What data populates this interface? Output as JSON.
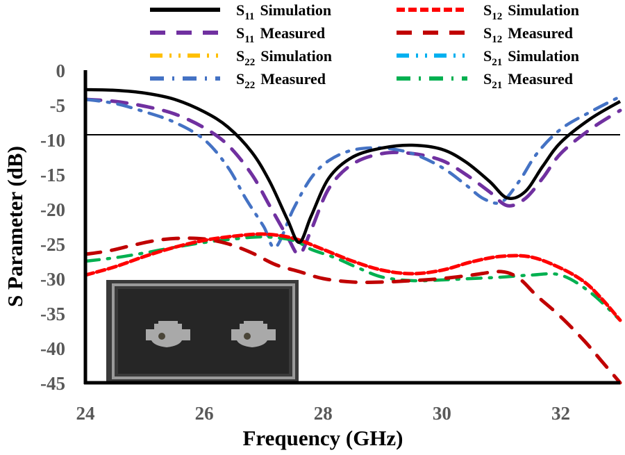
{
  "chart_data": {
    "type": "line",
    "title": "",
    "xlabel": "Frequency (GHz)",
    "ylabel": "S Parameter (dB)",
    "xlim": [
      24,
      33
    ],
    "ylim": [
      -45,
      0
    ],
    "xticks": [
      24,
      26,
      28,
      30,
      32
    ],
    "yticks": [
      0,
      -5,
      -10,
      -15,
      -20,
      -25,
      -30,
      -35,
      -40,
      -45
    ],
    "grid": false,
    "reference_line": {
      "y": -9.3,
      "label": ""
    },
    "legend": {
      "placement": "top",
      "columns": 2
    },
    "inset": {
      "description": "photo of fabricated two-port antenna prototype",
      "placement": "bottom-left"
    },
    "series": [
      {
        "name": "S11 Simulation",
        "base": "S",
        "sub": "11",
        "suffix": "Simulation",
        "color": "#000000",
        "dash": "solid",
        "x": [
          24,
          24.5,
          25,
          25.5,
          26,
          26.4,
          26.8,
          27.1,
          27.4,
          27.6,
          27.8,
          28.1,
          28.5,
          29,
          29.5,
          30,
          30.4,
          30.8,
          31.1,
          31.4,
          31.7,
          32,
          32.5,
          33
        ],
        "y": [
          -2.8,
          -2.9,
          -3.3,
          -4.2,
          -6.0,
          -8.2,
          -11.8,
          -16.0,
          -21.5,
          -24.8,
          -21.0,
          -15.5,
          -12.5,
          -11.2,
          -10.8,
          -11.4,
          -13.2,
          -16.0,
          -18.4,
          -17.5,
          -13.8,
          -10.4,
          -7.0,
          -4.5
        ]
      },
      {
        "name": "S11 Measured",
        "base": "S",
        "sub": "11",
        "suffix": "Measured",
        "color": "#7030a0",
        "dash": "longdash",
        "x": [
          24,
          24.5,
          25,
          25.5,
          26,
          26.4,
          26.8,
          27.1,
          27.4,
          27.6,
          27.8,
          28.1,
          28.5,
          29,
          29.5,
          30,
          30.4,
          30.8,
          31.1,
          31.4,
          31.7,
          32,
          32.5,
          33
        ],
        "y": [
          -4.2,
          -4.5,
          -5.2,
          -6.3,
          -8.3,
          -10.8,
          -15.0,
          -19.5,
          -24.0,
          -26.5,
          -23.0,
          -17.0,
          -13.5,
          -12.0,
          -12.0,
          -13.0,
          -15.0,
          -17.5,
          -19.5,
          -18.5,
          -15.5,
          -12.0,
          -8.5,
          -5.8
        ]
      },
      {
        "name": "S22 Simulation",
        "base": "S",
        "sub": "22",
        "suffix": "Simulation",
        "color": "#ffc000",
        "dash": "dashdotdot",
        "x": [],
        "y": []
      },
      {
        "name": "S22 Measured",
        "base": "S",
        "sub": "22",
        "suffix": "Measured",
        "color": "#4472c4",
        "dash": "dashdot",
        "x": [
          24,
          24.5,
          25,
          25.5,
          26,
          26.4,
          26.7,
          27.0,
          27.2,
          27.5,
          27.8,
          28.1,
          28.5,
          29,
          29.5,
          30,
          30.4,
          30.7,
          31.0,
          31.3,
          31.6,
          32,
          32.5,
          33
        ],
        "y": [
          -4.2,
          -4.8,
          -6.0,
          -7.5,
          -10.0,
          -14.0,
          -18.5,
          -22.5,
          -25.5,
          -20.0,
          -15.5,
          -13.0,
          -11.5,
          -11.2,
          -12.0,
          -14.0,
          -16.5,
          -18.5,
          -19.0,
          -16.0,
          -12.0,
          -8.5,
          -6.0,
          -3.8
        ]
      },
      {
        "name": "S12 Simulation",
        "base": "S",
        "sub": "12",
        "suffix": "Simulation",
        "color": "#ff0000",
        "dash": "shortdash",
        "x": [
          24,
          24.5,
          25,
          25.5,
          26,
          26.5,
          27,
          27.5,
          28,
          28.5,
          29,
          29.5,
          30,
          30.5,
          31,
          31.5,
          32,
          32.4,
          32.7,
          33
        ],
        "y": [
          -29.5,
          -28.3,
          -26.8,
          -25.5,
          -24.5,
          -23.9,
          -23.6,
          -24.2,
          -25.8,
          -27.5,
          -28.8,
          -29.3,
          -28.8,
          -27.6,
          -26.8,
          -26.9,
          -28.5,
          -30.5,
          -33.0,
          -36.0
        ]
      },
      {
        "name": "S12 Measured",
        "base": "S",
        "sub": "12",
        "suffix": "Measured",
        "color": "#c00000",
        "dash": "longdash",
        "x": [
          24,
          24.4,
          24.8,
          25.2,
          25.6,
          26.0,
          26.4,
          26.8,
          27.2,
          27.6,
          28.0,
          28.5,
          29,
          29.5,
          30,
          30.5,
          31,
          31.3,
          31.6,
          32.0,
          32.4,
          32.7,
          33
        ],
        "y": [
          -26.5,
          -26.0,
          -25.2,
          -24.5,
          -24.2,
          -24.3,
          -25.0,
          -26.3,
          -28.0,
          -29.0,
          -30.0,
          -30.5,
          -30.5,
          -30.3,
          -30.0,
          -29.5,
          -29.0,
          -30.0,
          -32.5,
          -35.5,
          -39.0,
          -42.0,
          -45.0
        ]
      },
      {
        "name": "S21 Simulation",
        "base": "S",
        "sub": "21",
        "suffix": "Simulation",
        "color": "#00b0f0",
        "dash": "dashdotdot",
        "x": [
          24,
          24.5,
          25,
          25.5,
          26,
          26.5,
          27,
          27.5,
          28,
          28.5,
          29,
          29.5,
          30,
          30.5,
          31,
          31.5,
          32,
          32.4,
          32.7,
          33
        ],
        "y": [
          -29.5,
          -28.3,
          -26.8,
          -25.5,
          -24.5,
          -23.9,
          -23.6,
          -24.2,
          -25.8,
          -27.5,
          -28.8,
          -29.3,
          -28.8,
          -27.6,
          -26.8,
          -26.9,
          -28.5,
          -30.5,
          -33.0,
          -36.0
        ]
      },
      {
        "name": "S21 Measured",
        "base": "S",
        "sub": "21",
        "suffix": "Measured",
        "color": "#00b050",
        "dash": "dashdot",
        "x": [
          24,
          24.5,
          25,
          25.5,
          26,
          26.5,
          27,
          27.5,
          27.8,
          28.2,
          28.6,
          29,
          29.5,
          30,
          30.5,
          31,
          31.5,
          32,
          32.5,
          33
        ],
        "y": [
          -27.5,
          -27.0,
          -26.3,
          -25.5,
          -24.8,
          -24.3,
          -24.0,
          -24.5,
          -25.8,
          -27.0,
          -28.5,
          -29.8,
          -30.3,
          -30.2,
          -30.0,
          -29.8,
          -29.5,
          -29.5,
          -32.0,
          -36.0
        ]
      }
    ]
  }
}
